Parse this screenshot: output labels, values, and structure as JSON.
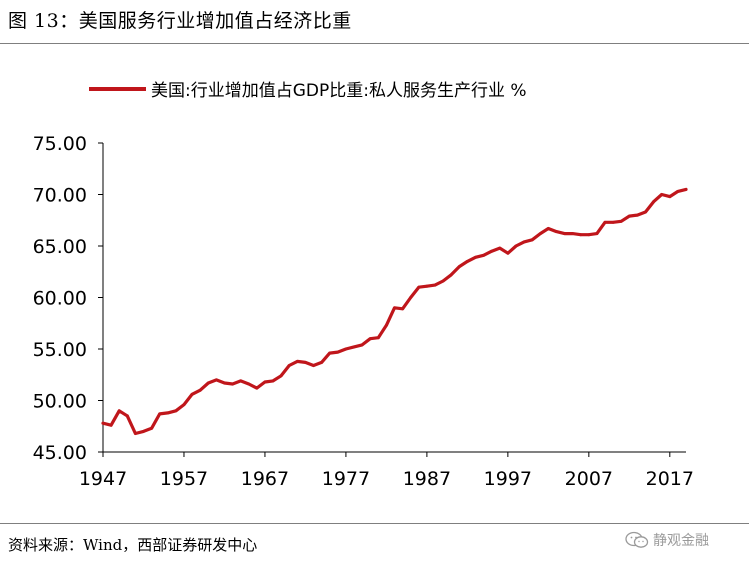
{
  "figure": {
    "title": "图 13：美国服务行业增加值占经济比重",
    "source": "资料来源：Wind，西部证券研发中心",
    "watermark": "静观金融",
    "watermark_icon": "wechat-icon"
  },
  "colors": {
    "series": "#c0161b",
    "axis": "#000000",
    "rule": "#7f7f7f"
  },
  "chart_data": {
    "type": "line",
    "legend_position": "top-center",
    "grid": false,
    "ylim": [
      45,
      75
    ],
    "xlim": [
      1947,
      2019
    ],
    "yticks": [
      "45.00",
      "50.00",
      "55.00",
      "60.00",
      "65.00",
      "70.00",
      "75.00"
    ],
    "xticks": [
      "1947",
      "1957",
      "1967",
      "1977",
      "1987",
      "1997",
      "2007",
      "2017"
    ],
    "series": [
      {
        "name": "美国:行业增加值占GDP比重:私人服务生产行业 %",
        "x": [
          1947,
          1948,
          1949,
          1950,
          1951,
          1952,
          1953,
          1954,
          1955,
          1956,
          1957,
          1958,
          1959,
          1960,
          1961,
          1962,
          1963,
          1964,
          1965,
          1966,
          1967,
          1968,
          1969,
          1970,
          1971,
          1972,
          1973,
          1974,
          1975,
          1976,
          1977,
          1978,
          1979,
          1980,
          1981,
          1982,
          1983,
          1984,
          1985,
          1986,
          1987,
          1988,
          1989,
          1990,
          1991,
          1992,
          1993,
          1994,
          1995,
          1996,
          1997,
          1998,
          1999,
          2000,
          2001,
          2002,
          2003,
          2004,
          2005,
          2006,
          2007,
          2008,
          2009,
          2010,
          2011,
          2012,
          2013,
          2014,
          2015,
          2016,
          2017,
          2018,
          2019
        ],
        "values": [
          47.8,
          47.6,
          49.0,
          48.5,
          46.8,
          47.0,
          47.3,
          48.7,
          48.8,
          49.0,
          49.6,
          50.6,
          51.0,
          51.7,
          52.0,
          51.7,
          51.6,
          51.9,
          51.6,
          51.2,
          51.8,
          51.9,
          52.4,
          53.4,
          53.8,
          53.7,
          53.4,
          53.7,
          54.6,
          54.7,
          55.0,
          55.2,
          55.4,
          56.0,
          56.1,
          57.3,
          59.0,
          58.9,
          60.0,
          61.0,
          61.1,
          61.2,
          61.6,
          62.2,
          63.0,
          63.5,
          63.9,
          64.1,
          64.5,
          64.8,
          64.3,
          65.0,
          65.4,
          65.6,
          66.2,
          66.7,
          66.4,
          66.2,
          66.2,
          66.1,
          66.1,
          66.2,
          67.3,
          67.3,
          67.4,
          67.9,
          68.0,
          68.3,
          69.3,
          70.0,
          69.8,
          70.3,
          70.5
        ]
      }
    ]
  }
}
